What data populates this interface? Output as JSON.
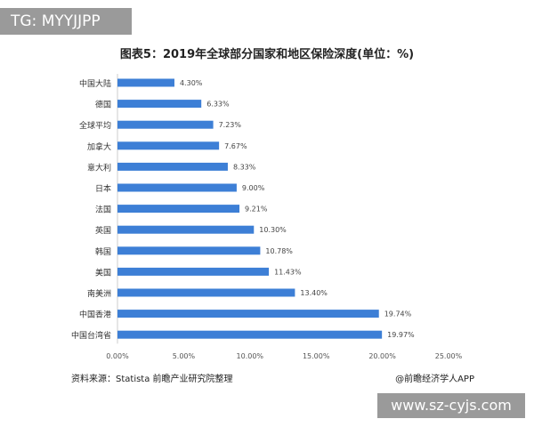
{
  "overlay_tag": "TG: MYYJJPP",
  "overlay_site": "www.sz-cyjs.com",
  "source": "资料来源：Statista 前瞻产业研究院整理",
  "credit": "@前瞻经济学人APP",
  "chart_data": {
    "type": "bar",
    "orientation": "horizontal",
    "title": "图表5：2019年全球部分国家和地区保险深度(单位：%)",
    "categories": [
      "中国大陆",
      "德国",
      "全球平均",
      "加拿大",
      "意大利",
      "日本",
      "法国",
      "英国",
      "韩国",
      "美国",
      "南美洲",
      "中国香港",
      "中国台湾省"
    ],
    "values": [
      4.3,
      6.33,
      7.23,
      7.67,
      8.33,
      9.0,
      9.21,
      10.3,
      10.78,
      11.43,
      13.4,
      19.74,
      19.97
    ],
    "data_labels": [
      "4.30%",
      "6.33%",
      "7.23%",
      "7.67%",
      "8.33%",
      "9.00%",
      "9.21%",
      "10.30%",
      "10.78%",
      "11.43%",
      "13.40%",
      "19.74%",
      "19.97%"
    ],
    "xlim": [
      0,
      25
    ],
    "xticks": [
      "0.00%",
      "5.00%",
      "10.00%",
      "15.00%",
      "20.00%",
      "25.00%"
    ],
    "grid": false,
    "bar_color": "#3d7fd6"
  }
}
